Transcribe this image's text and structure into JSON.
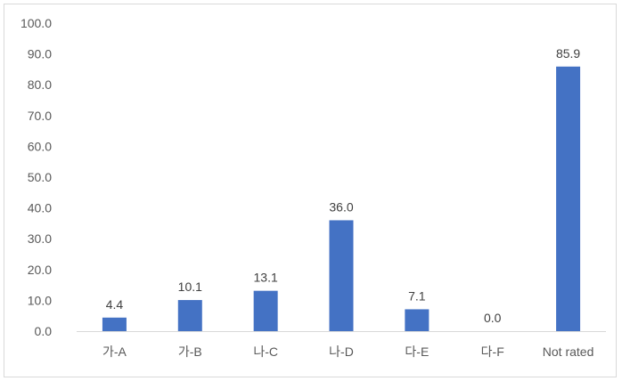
{
  "chart_data": {
    "type": "bar",
    "categories": [
      "가-A",
      "가-B",
      "나-C",
      "나-D",
      "다-E",
      "다-F",
      "Not rated"
    ],
    "values": [
      4.4,
      10.1,
      13.1,
      36.0,
      7.1,
      0.0,
      85.9
    ],
    "data_labels": [
      "4.4",
      "10.1",
      "13.1",
      "36.0",
      "7.1",
      "0.0",
      "85.9"
    ],
    "y_ticks": [
      "0.0",
      "10.0",
      "20.0",
      "30.0",
      "40.0",
      "50.0",
      "60.0",
      "70.0",
      "80.0",
      "90.0",
      "100.0"
    ],
    "ylim": [
      0,
      100
    ],
    "grid": false,
    "legend": "none",
    "bar_color": "#4472c4"
  }
}
